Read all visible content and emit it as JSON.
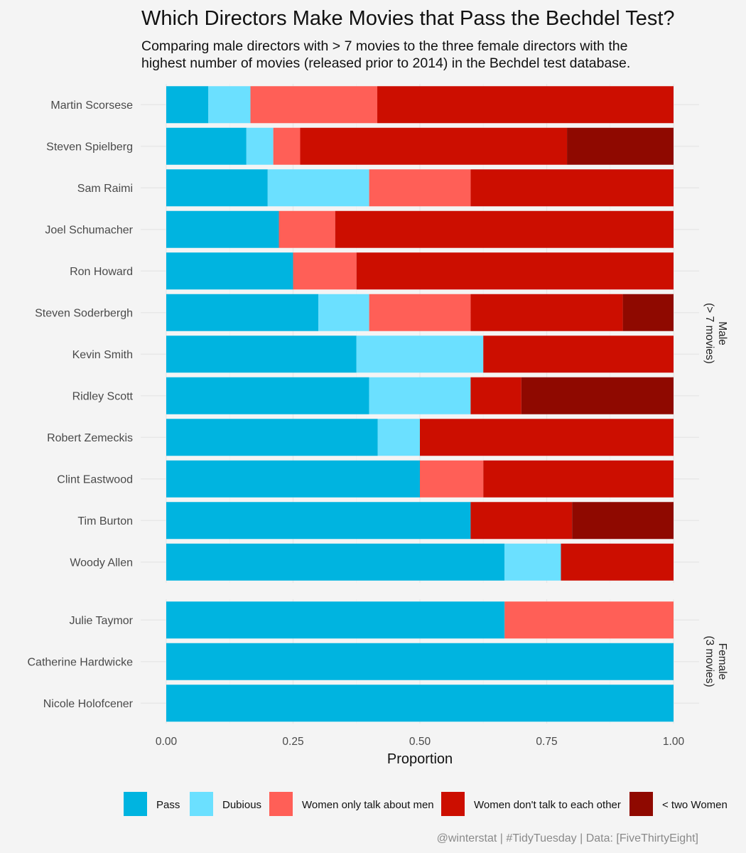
{
  "title": "Which Directors Make Movies that Pass the Bechdel Test?",
  "subtitle_lines": [
    "Comparing male directors with > 7 movies to the three female directors with the",
    "highest number of movies (released prior to 2014) in the Bechdel test database."
  ],
  "caption": "@winterstat | #TidyTuesday | Data: [FiveThirtyEight]",
  "legend": [
    {
      "label": "Pass",
      "color": "#00b4e0"
    },
    {
      "label": "Dubious",
      "color": "#6be0ff"
    },
    {
      "label": "Women only talk about men",
      "color": "#ff5f57"
    },
    {
      "label": "Women don't talk to each other",
      "color": "#cc0e00"
    },
    {
      "label": "< two Women",
      "color": "#8f0900"
    }
  ],
  "chart_data": {
    "type": "bar",
    "orientation": "horizontal",
    "stacked": true,
    "xlabel": "Proportion",
    "ylabel": "",
    "xlim": [
      0,
      1
    ],
    "xticks": [
      "0.00",
      "0.25",
      "0.50",
      "0.75",
      "1.00"
    ],
    "legend_position": "bottom",
    "series_names": [
      "Pass",
      "Dubious",
      "Women only talk about men",
      "Women don't talk to each other",
      "< two Women"
    ],
    "facets": [
      {
        "label_lines": [
          "Male",
          "(> 7 movies)"
        ],
        "rows": [
          {
            "director": "Martin Scorsese",
            "values": [
              0.083,
              0.083,
              0.25,
              0.584,
              0
            ]
          },
          {
            "director": "Steven Spielberg",
            "values": [
              0.158,
              0.053,
              0.053,
              0.526,
              0.21
            ]
          },
          {
            "director": "Sam Raimi",
            "values": [
              0.2,
              0.2,
              0.2,
              0.4,
              0
            ]
          },
          {
            "director": "Joel Schumacher",
            "values": [
              0.222,
              0,
              0.111,
              0.667,
              0
            ]
          },
          {
            "director": "Ron Howard",
            "values": [
              0.25,
              0,
              0.125,
              0.625,
              0
            ]
          },
          {
            "director": "Steven Soderbergh",
            "values": [
              0.3,
              0.1,
              0.2,
              0.3,
              0.1
            ]
          },
          {
            "director": "Kevin Smith",
            "values": [
              0.375,
              0.25,
              0,
              0.375,
              0
            ]
          },
          {
            "director": "Ridley Scott",
            "values": [
              0.4,
              0.2,
              0,
              0.1,
              0.3
            ]
          },
          {
            "director": "Robert Zemeckis",
            "values": [
              0.417,
              0.083,
              0,
              0.5,
              0
            ]
          },
          {
            "director": "Clint Eastwood",
            "values": [
              0.5,
              0,
              0.125,
              0.375,
              0
            ]
          },
          {
            "director": "Tim Burton",
            "values": [
              0.6,
              0,
              0,
              0.2,
              0.2
            ]
          },
          {
            "director": "Woody Allen",
            "values": [
              0.667,
              0.111,
              0,
              0.222,
              0
            ]
          }
        ]
      },
      {
        "label_lines": [
          "Female",
          "(3 movies)"
        ],
        "rows": [
          {
            "director": "Julie Taymor",
            "values": [
              0.667,
              0,
              0.333,
              0,
              0
            ]
          },
          {
            "director": "Catherine Hardwicke",
            "values": [
              1,
              0,
              0,
              0,
              0
            ]
          },
          {
            "director": "Nicole Holofcener",
            "values": [
              1,
              0,
              0,
              0,
              0
            ]
          }
        ]
      }
    ]
  }
}
